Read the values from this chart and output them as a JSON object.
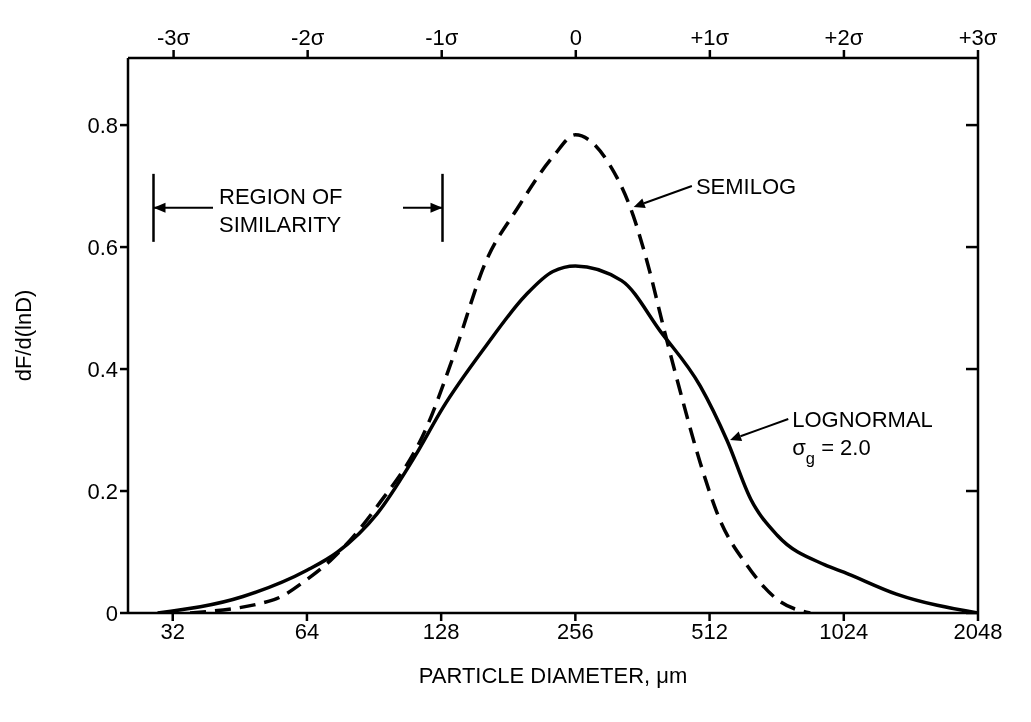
{
  "chart_data": {
    "type": "line",
    "xlabel": "PARTICLE DIAMETER, μm",
    "ylabel": "dF/d(lnD)",
    "log": "x",
    "xlim": [
      25.4,
      2048
    ],
    "xticks": [
      32,
      64,
      128,
      256,
      512,
      1024,
      2048
    ],
    "x2lim": [
      -3.34,
      3
    ],
    "x2ticks": [
      {
        "value": -3,
        "label": "-3σ"
      },
      {
        "value": -2,
        "label": "-2σ"
      },
      {
        "value": -1,
        "label": "-1σ"
      },
      0,
      {
        "value": 1,
        "label": "+1σ"
      },
      {
        "value": 2,
        "label": "+2σ"
      },
      {
        "value": 3,
        "label": "+3σ"
      }
    ],
    "ylim": [
      0,
      0.91
    ],
    "yticks": [
      0,
      0.2,
      0.4,
      0.6,
      0.8
    ],
    "grid": false,
    "legend": false,
    "marker": "none",
    "series": [
      {
        "color": "#000000",
        "line_style": "solid",
        "x": [
          29.6,
          46,
          64,
          75,
          92,
          112,
          129,
          161,
          198,
          228,
          256,
          325,
          398,
          488,
          561,
          633,
          727,
          929,
          1024,
          1344,
          2048
        ],
        "values": [
          0,
          0.027,
          0.07,
          0.1,
          0.163,
          0.258,
          0.336,
          0.437,
          0.521,
          0.56,
          0.569,
          0.545,
          0.461,
          0.372,
          0.282,
          0.187,
          0.127,
          0.079,
          0.067,
          0.031,
          0
        ]
      },
      {
        "color": "#000000",
        "line_style": "dashed",
        "x": [
          35,
          54,
          64,
          72,
          92,
          119,
          137,
          161,
          190,
          228,
          256,
          305,
          345,
          373,
          406,
          439,
          488,
          537,
          620,
          727,
          861
        ],
        "values": [
          0,
          0.022,
          0.055,
          0.085,
          0.175,
          0.306,
          0.425,
          0.575,
          0.664,
          0.748,
          0.784,
          0.736,
          0.652,
          0.569,
          0.461,
          0.366,
          0.246,
          0.157,
          0.079,
          0.022,
          0
        ]
      }
    ],
    "annotations": [
      "REGION OF\nSIMILARITY",
      {
        "text": "SEMILOG",
        "x": 341,
        "y": 0.664
      },
      {
        "text": "LOGNORMAL\nσ$_{g}$ = 2.0",
        "x": 561,
        "y": 0.282
      }
    ]
  }
}
